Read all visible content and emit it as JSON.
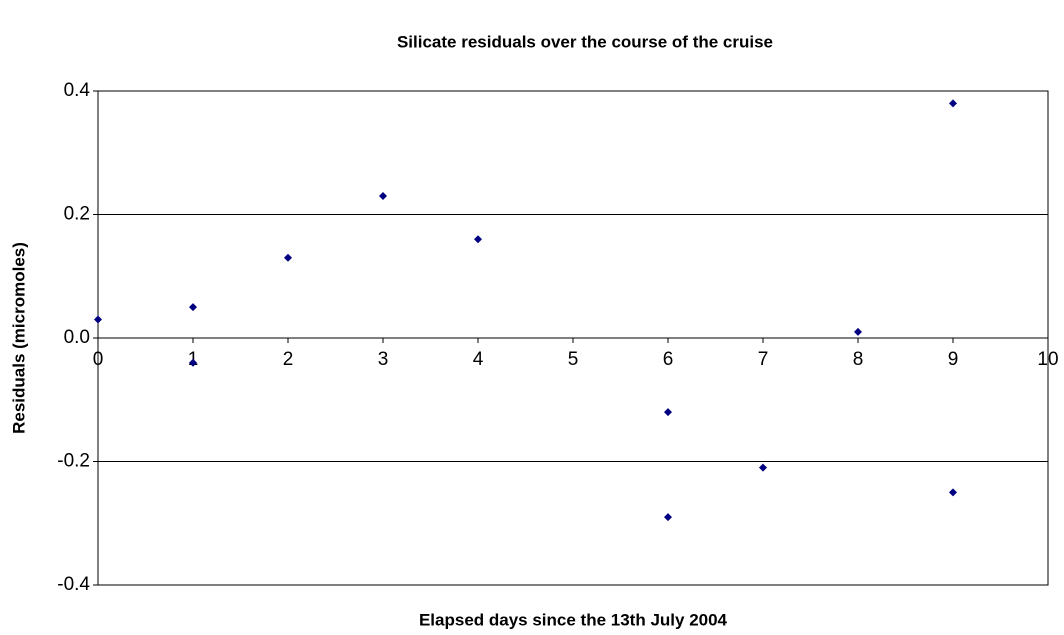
{
  "chart_data": {
    "type": "scatter",
    "title": "Silicate residuals over the course of the cruise",
    "x_label": "Elapsed days since the 13th July 2004",
    "y_label": "Residuals (micromoles)",
    "series": [
      {
        "color": "#000080",
        "x": [
          0,
          1,
          1,
          2,
          3,
          4,
          6,
          6,
          7,
          8,
          9,
          9
        ],
        "values": [
          0.03,
          0.05,
          -0.04,
          0.13,
          0.23,
          0.16,
          -0.12,
          -0.29,
          -0.21,
          0.01,
          0.38,
          -0.25
        ]
      }
    ],
    "xlim": [
      0,
      10
    ],
    "xticks": [
      0,
      1,
      2,
      3,
      4,
      5,
      6,
      7,
      8,
      9,
      10
    ],
    "ylim": [
      -0.4,
      0.4
    ],
    "yticks": [
      -0.4,
      -0.2,
      {
        "value": 0,
        "label": "0.0"
      },
      0.2,
      0.4
    ],
    "grid": true
  }
}
